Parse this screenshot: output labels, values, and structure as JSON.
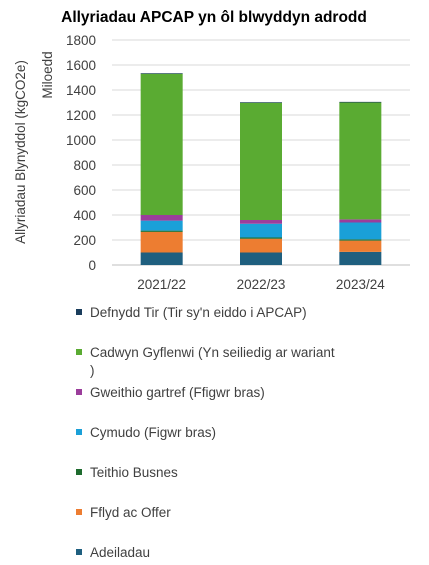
{
  "chart_data": {
    "type": "bar",
    "stacked": true,
    "title": "Allyriadau APCAP yn ôl blwyddyn adrodd",
    "ylabel": "Allyriadau Blynyddol (kgCO2e)",
    "yunit": "Miloedd",
    "ylim": [
      0,
      1800
    ],
    "yticks": [
      0,
      200,
      400,
      600,
      800,
      1000,
      1200,
      1400,
      1600,
      1800
    ],
    "grid": true,
    "legend_position": "bottom",
    "categories": [
      "2021/22",
      "2022/23",
      "2023/24"
    ],
    "series": [
      {
        "name": "Adeiladau",
        "color": "#1f5f7f",
        "values": [
          100,
          100,
          105
        ]
      },
      {
        "name": "Fflyd ac Offer",
        "color": "#ed7d31",
        "values": [
          165,
          110,
          90
        ]
      },
      {
        "name": "Teithio Busnes",
        "color": "#1e6b2e",
        "values": [
          10,
          10,
          10
        ]
      },
      {
        "name": "Cymudo (Figwr bras)",
        "color": "#1aa0d8",
        "values": [
          80,
          110,
          135
        ]
      },
      {
        "name": "Gweithio gartref (Ffigwr bras)",
        "color": "#9b3d9b",
        "values": [
          45,
          30,
          25
        ]
      },
      {
        "name": "Cadwyn Gyflenwi (Yn seiliedig ar wariant )",
        "color": "#5aab32",
        "values": [
          1130,
          938,
          935
        ]
      },
      {
        "name": "Defnydd Tir (Tir sy'n eiddo i APCAP)",
        "color": "#1a3d5c",
        "values": [
          5,
          5,
          5
        ]
      }
    ],
    "legend": [
      {
        "lines": [
          "Defnydd Tir (Tir sy'n eiddo i APCAP)"
        ],
        "color": "#1a3d5c"
      },
      {
        "lines": [
          "Cadwyn Gyflenwi (Yn seiliedig ar wariant",
          ")"
        ],
        "color": "#5aab32"
      },
      {
        "lines": [
          "Gweithio gartref (Ffigwr bras)"
        ],
        "color": "#9b3d9b"
      },
      {
        "lines": [
          "Cymudo (Figwr bras)"
        ],
        "color": "#1aa0d8"
      },
      {
        "lines": [
          "Teithio Busnes"
        ],
        "color": "#1e6b2e"
      },
      {
        "lines": [
          "Fflyd ac Offer"
        ],
        "color": "#ed7d31"
      },
      {
        "lines": [
          "Adeiladau"
        ],
        "color": "#1f5f7f"
      }
    ]
  }
}
